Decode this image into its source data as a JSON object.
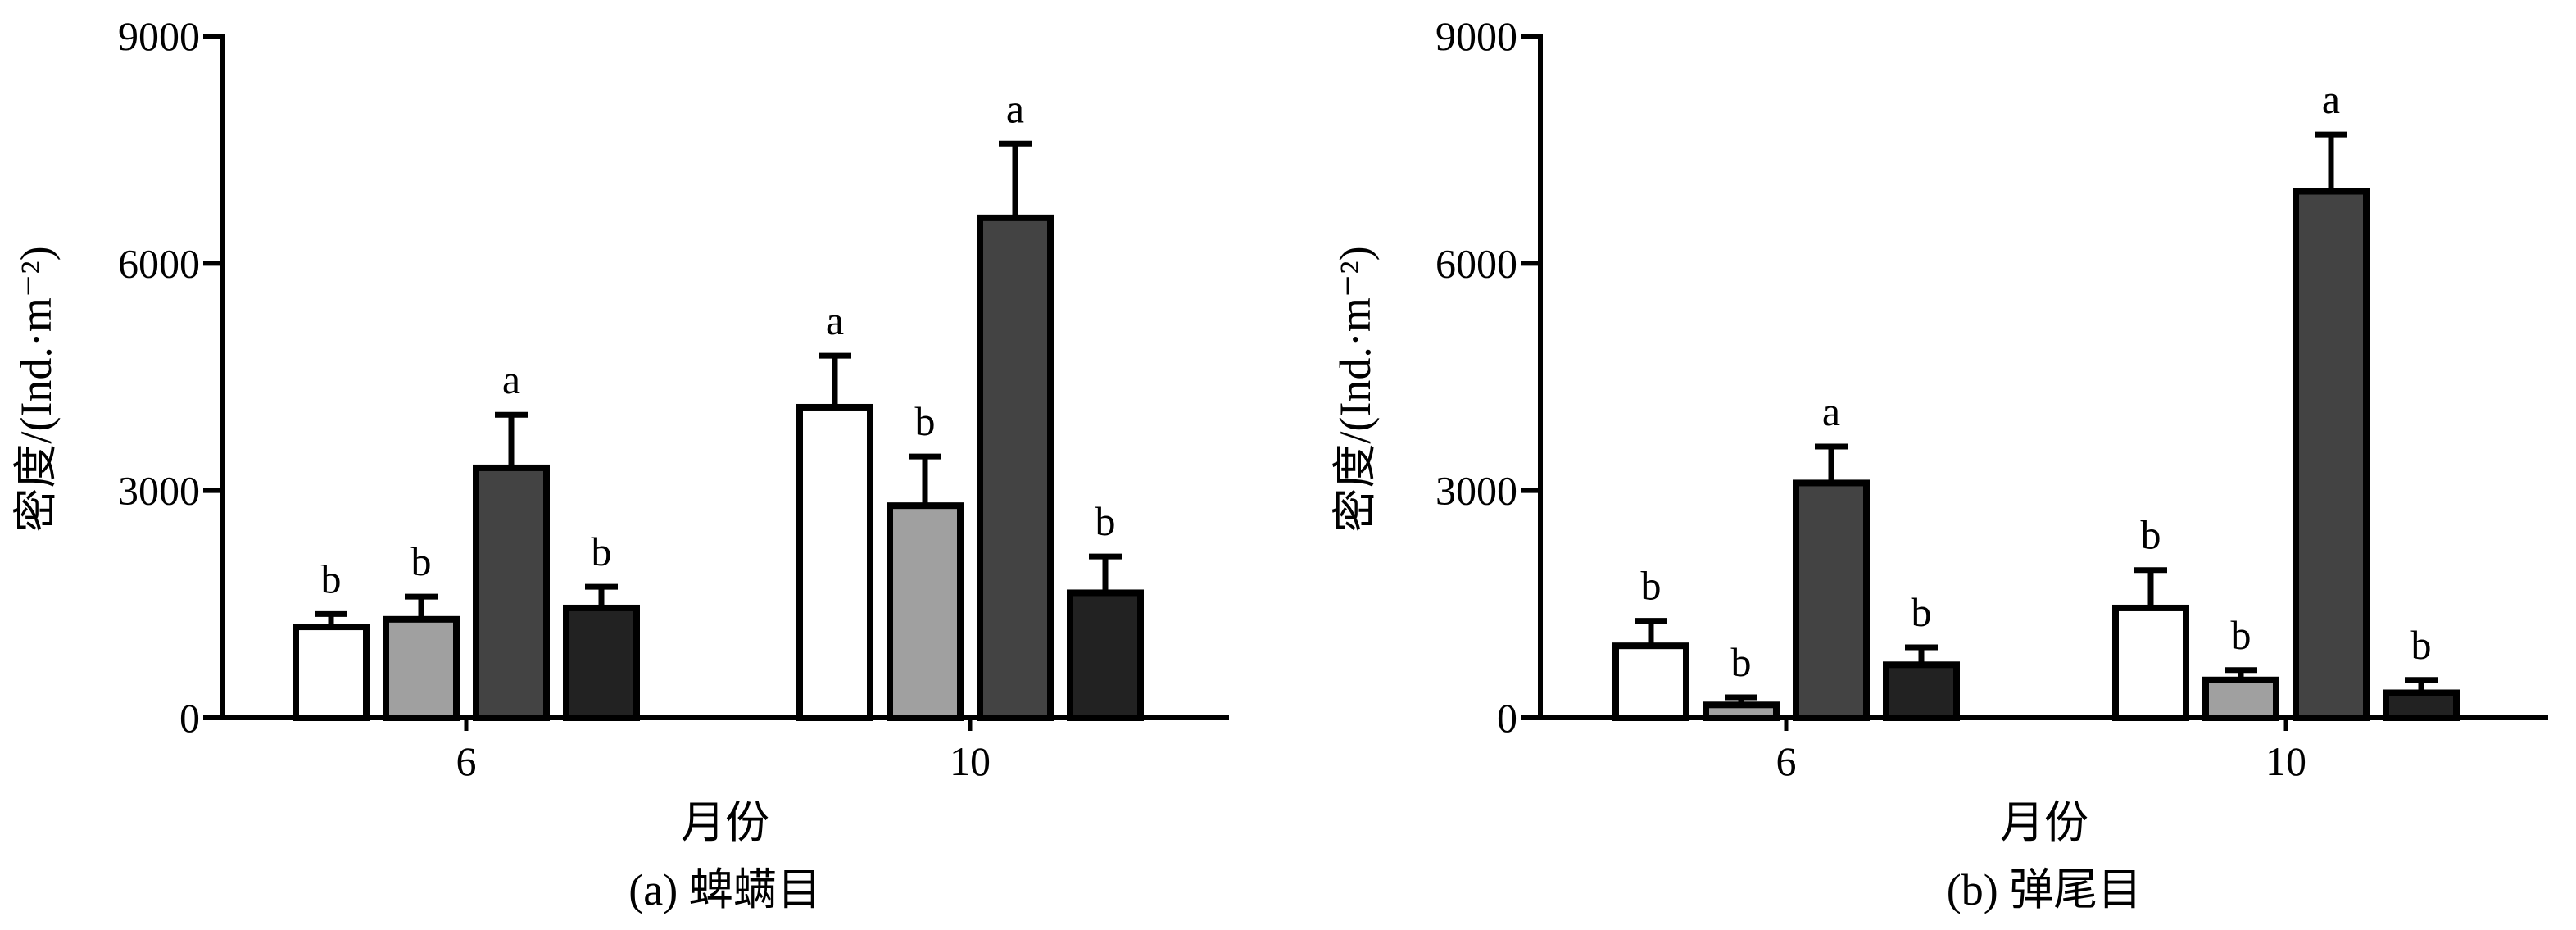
{
  "chart_data": [
    {
      "type": "bar",
      "panel_caption": "(a) 蜱螨目",
      "xlabel": "月份",
      "ylabel": "密度/(Ind.·m⁻²)",
      "yticks": [
        "0",
        "3000",
        "6000",
        "9000"
      ],
      "ylim": [
        0,
        9000
      ],
      "categories": [
        "6",
        "10"
      ],
      "grid": false,
      "legend": "none",
      "series_colors": [
        "#ffffff",
        "#a0a0a0",
        "#434343",
        "#222222"
      ],
      "series": [
        {
          "values": [
            1200,
            4100
          ],
          "errors": [
            170,
            680
          ],
          "labels": [
            "b",
            "a"
          ]
        },
        {
          "values": [
            1300,
            2800
          ],
          "errors": [
            300,
            650
          ],
          "labels": [
            "b",
            "b"
          ]
        },
        {
          "values": [
            3300,
            6600
          ],
          "errors": [
            700,
            980
          ],
          "labels": [
            "a",
            "a"
          ]
        },
        {
          "values": [
            1450,
            1650
          ],
          "errors": [
            280,
            480
          ],
          "labels": [
            "b",
            "b"
          ]
        }
      ]
    },
    {
      "type": "bar",
      "panel_caption": "(b) 弹尾目",
      "xlabel": "月份",
      "ylabel": "密度/(Ind.·m⁻²)",
      "yticks": [
        "0",
        "3000",
        "6000",
        "9000"
      ],
      "ylim": [
        0,
        9000
      ],
      "categories": [
        "6",
        "10"
      ],
      "grid": false,
      "legend": "none",
      "series_colors": [
        "#ffffff",
        "#a0a0a0",
        "#434343",
        "#222222"
      ],
      "series": [
        {
          "values": [
            950,
            1450
          ],
          "errors": [
            330,
            500
          ],
          "labels": [
            "b",
            "b"
          ]
        },
        {
          "values": [
            170,
            500
          ],
          "errors": [
            100,
            130
          ],
          "labels": [
            "b",
            "b"
          ]
        },
        {
          "values": [
            3100,
            6950
          ],
          "errors": [
            480,
            750
          ],
          "labels": [
            "a",
            "a"
          ]
        },
        {
          "values": [
            700,
            330
          ],
          "errors": [
            230,
            170
          ],
          "labels": [
            "b",
            "b"
          ]
        }
      ]
    }
  ]
}
